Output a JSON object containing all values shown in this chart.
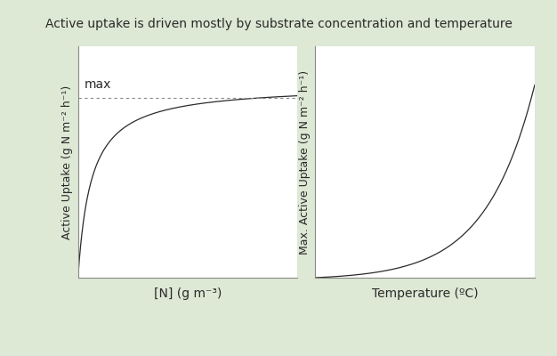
{
  "title": "Active uptake is driven mostly by substrate concentration and temperature",
  "title_fontsize": 10,
  "background_color": "#dde8d5",
  "plot_bg_color": "#ffffff",
  "left_ylabel": "Active Uptake (g N m⁻² h⁻¹)",
  "right_ylabel": "Max. Active Uptake (g N m⁻² h⁻¹)",
  "left_xlabel": "[N] (g m⁻³)",
  "right_xlabel": "Temperature (ºC)",
  "max_label": "max",
  "curve_color": "#2a2a2a",
  "dashed_color": "#888888",
  "axis_color": "#888888",
  "label_fontsize": 9,
  "title_color": "#2a2a2a"
}
